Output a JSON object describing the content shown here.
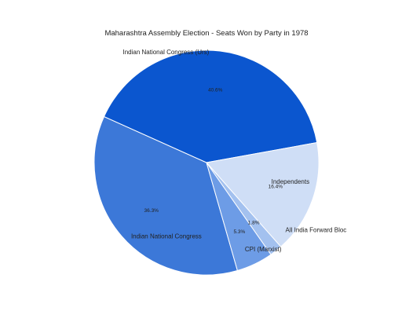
{
  "chart_data": {
    "type": "pie",
    "title": "Maharashtra Assembly Election - Seats Won by Party in 1978",
    "slices": [
      {
        "label": "Indian National Congress",
        "value": 36.3,
        "pct_text": "36.3%",
        "color": "#3c78d8"
      },
      {
        "label": "Indian National Congress (Urs)",
        "value": 40.6,
        "pct_text": "40.6%",
        "color": "#0b56cf"
      },
      {
        "label": "Independents",
        "value": 16.4,
        "pct_text": "16.4%",
        "color": "#cfdef6"
      },
      {
        "label": "All India Forward Bloc",
        "value": 1.8,
        "pct_text": "1.8%",
        "color": "#a3c1ef"
      },
      {
        "label": "CPI (Marxist)",
        "value": 5.3,
        "pct_text": "5.3%",
        "color": "#6d9ce6"
      }
    ]
  }
}
